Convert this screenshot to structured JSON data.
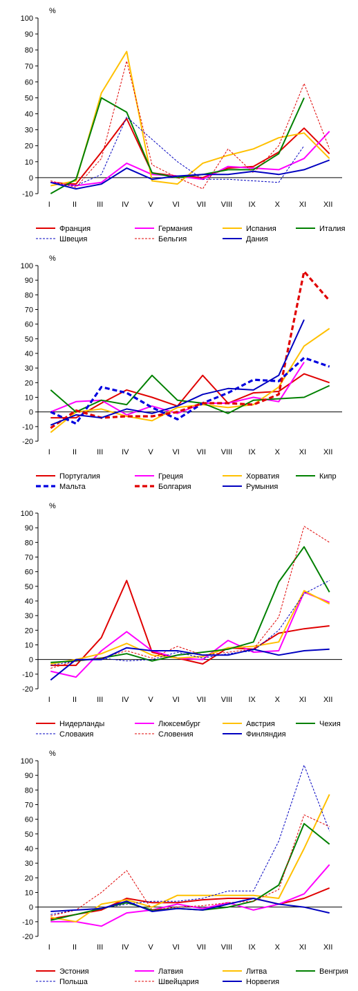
{
  "chart_data": [
    {
      "type": "line",
      "unit_label": "%",
      "categories": [
        "I",
        "II",
        "III",
        "IV",
        "V",
        "VI",
        "VII",
        "VIII",
        "IX",
        "X",
        "XI",
        "XII"
      ],
      "ylim": [
        -10,
        100
      ],
      "yticks": [
        "-10",
        "0",
        "10",
        "20",
        "30",
        "40",
        "50",
        "60",
        "70",
        "80",
        "90",
        "100"
      ],
      "legend_position": "bottom",
      "series": [
        {
          "name": "Франция",
          "color": "#e00000",
          "style": "solid",
          "width": "normal",
          "values": [
            -3,
            -4,
            16,
            37,
            3,
            1,
            0,
            6,
            7,
            16,
            31,
            15
          ]
        },
        {
          "name": "Германия",
          "color": "#ff00ff",
          "style": "solid",
          "width": "normal",
          "values": [
            -3,
            -5,
            -3,
            9,
            2,
            1,
            -1,
            7,
            6,
            5,
            12,
            29
          ]
        },
        {
          "name": "Испания",
          "color": "#ffc000",
          "style": "solid",
          "width": "normal",
          "values": [
            -5,
            -2,
            53,
            79,
            -2,
            -4,
            9,
            14,
            18,
            25,
            28,
            12
          ]
        },
        {
          "name": "Италия",
          "color": "#008000",
          "style": "solid",
          "width": "normal",
          "values": [
            -10,
            -1,
            50,
            41,
            3,
            0,
            2,
            5,
            5,
            15,
            50,
            null
          ]
        },
        {
          "name": "Швеция",
          "color": "#0000c0",
          "style": "dash",
          "width": "thin",
          "values": [
            -3,
            -5,
            2,
            38,
            24,
            10,
            -1,
            -1,
            -2,
            -3,
            20,
            null
          ]
        },
        {
          "name": "Бельгия",
          "color": "#e00000",
          "style": "dash",
          "width": "thin",
          "values": [
            -2,
            -6,
            12,
            73,
            8,
            0,
            -7,
            18,
            3,
            20,
            59,
            18
          ]
        },
        {
          "name": "Дания",
          "color": "#0000c0",
          "style": "solid",
          "width": "normal",
          "values": [
            -3,
            -7,
            -4,
            6,
            -1,
            1,
            2,
            2,
            4,
            2,
            5,
            11
          ]
        }
      ]
    },
    {
      "type": "line",
      "unit_label": "%",
      "categories": [
        "I",
        "II",
        "III",
        "IV",
        "V",
        "VI",
        "VII",
        "VIII",
        "IX",
        "X",
        "XI",
        "XII"
      ],
      "ylim": [
        -20,
        100
      ],
      "yticks": [
        "-20",
        "-10",
        "0",
        "10",
        "20",
        "30",
        "40",
        "50",
        "60",
        "70",
        "80",
        "90",
        "100"
      ],
      "legend_position": "bottom",
      "series": [
        {
          "name": "Португалия",
          "color": "#e00000",
          "style": "solid",
          "width": "normal",
          "values": [
            -4,
            -4,
            6,
            15,
            10,
            4,
            25,
            6,
            13,
            14,
            26,
            20
          ]
        },
        {
          "name": "Греция",
          "color": "#ff00ff",
          "style": "solid",
          "width": "normal",
          "values": [
            0,
            7,
            8,
            -2,
            4,
            -1,
            6,
            6,
            10,
            7,
            34,
            null
          ]
        },
        {
          "name": "Хорватия",
          "color": "#ffc000",
          "style": "solid",
          "width": "normal",
          "values": [
            -14,
            0,
            2,
            -3,
            -6,
            3,
            5,
            3,
            5,
            17,
            45,
            57
          ]
        },
        {
          "name": "Кипр",
          "color": "#008000",
          "style": "solid",
          "width": "normal",
          "values": [
            15,
            0,
            8,
            5,
            25,
            8,
            6,
            -1,
            8,
            9,
            10,
            18
          ]
        },
        {
          "name": "Мальта",
          "color": "#0000e0",
          "style": "dash",
          "width": "thick",
          "values": [
            0,
            -8,
            17,
            13,
            3,
            -5,
            6,
            13,
            22,
            21,
            37,
            31
          ]
        },
        {
          "name": "Болгария",
          "color": "#e00000",
          "style": "dash",
          "width": "thick",
          "values": [
            -11,
            1,
            -4,
            -3,
            -3,
            0,
            6,
            6,
            5,
            12,
            96,
            76
          ]
        },
        {
          "name": "Румыния",
          "color": "#0000c0",
          "style": "solid",
          "width": "normal",
          "values": [
            -9,
            -2,
            -4,
            2,
            -1,
            4,
            12,
            16,
            15,
            25,
            63,
            null
          ]
        }
      ]
    },
    {
      "type": "line",
      "unit_label": "%",
      "categories": [
        "I",
        "II",
        "III",
        "IV",
        "V",
        "VI",
        "VII",
        "VIII",
        "IX",
        "X",
        "XI",
        "XII"
      ],
      "ylim": [
        -20,
        100
      ],
      "yticks": [
        "-20",
        "-10",
        "0",
        "10",
        "20",
        "30",
        "40",
        "50",
        "60",
        "70",
        "80",
        "90",
        "100"
      ],
      "legend_position": "bottom",
      "series": [
        {
          "name": "Нидерланды",
          "color": "#e00000",
          "style": "solid",
          "width": "normal",
          "values": [
            -4,
            -4,
            15,
            54,
            5,
            1,
            -3,
            8,
            7,
            18,
            21,
            23
          ]
        },
        {
          "name": "Люксембург",
          "color": "#ff00ff",
          "style": "solid",
          "width": "normal",
          "values": [
            -8,
            -12,
            6,
            19,
            6,
            1,
            0,
            13,
            5,
            6,
            46,
            39
          ]
        },
        {
          "name": "Австрия",
          "color": "#ffc000",
          "style": "solid",
          "width": "normal",
          "values": [
            -3,
            0,
            4,
            11,
            3,
            1,
            2,
            8,
            9,
            12,
            47,
            38
          ]
        },
        {
          "name": "Чехия",
          "color": "#008000",
          "style": "solid",
          "width": "normal",
          "values": [
            -2,
            -1,
            1,
            4,
            -1,
            3,
            5,
            7,
            12,
            53,
            77,
            46
          ]
        },
        {
          "name": "Словакия",
          "color": "#0000c0",
          "style": "dash",
          "width": "thin",
          "values": [
            -4,
            -1,
            1,
            -1,
            0,
            5,
            1,
            4,
            6,
            20,
            45,
            54
          ]
        },
        {
          "name": "Словения",
          "color": "#e00000",
          "style": "dash",
          "width": "thin",
          "values": [
            -6,
            -1,
            1,
            6,
            1,
            9,
            3,
            5,
            7,
            29,
            91,
            80
          ]
        },
        {
          "name": "Финляндия",
          "color": "#0000c0",
          "style": "solid",
          "width": "normal",
          "values": [
            -14,
            0,
            0,
            8,
            6,
            6,
            3,
            3,
            7,
            3,
            6,
            7
          ]
        }
      ]
    },
    {
      "type": "line",
      "unit_label": "%",
      "categories": [
        "I",
        "II",
        "III",
        "IV",
        "V",
        "VI",
        "VII",
        "VIII",
        "IX",
        "X",
        "XI",
        "XII"
      ],
      "ylim": [
        -20,
        100
      ],
      "yticks": [
        "-20",
        "-10",
        "0",
        "10",
        "20",
        "30",
        "40",
        "50",
        "60",
        "70",
        "80",
        "90",
        "100"
      ],
      "legend_position": "bottom",
      "series": [
        {
          "name": "Эстония",
          "color": "#e00000",
          "style": "solid",
          "width": "normal",
          "values": [
            -8,
            -5,
            -2,
            6,
            3,
            3,
            5,
            6,
            6,
            2,
            6,
            13
          ]
        },
        {
          "name": "Латвия",
          "color": "#ff00ff",
          "style": "solid",
          "width": "normal",
          "values": [
            -10,
            -10,
            -13,
            -4,
            -2,
            2,
            -1,
            3,
            -2,
            2,
            9,
            29
          ]
        },
        {
          "name": "Литва",
          "color": "#ffc000",
          "style": "solid",
          "width": "normal",
          "values": [
            -7,
            -10,
            2,
            5,
            0,
            8,
            8,
            8,
            8,
            6,
            40,
            77
          ]
        },
        {
          "name": "Венгрия",
          "color": "#008000",
          "style": "solid",
          "width": "normal",
          "values": [
            -9,
            -5,
            -1,
            3,
            -2,
            -1,
            -2,
            0,
            4,
            15,
            57,
            43
          ]
        },
        {
          "name": "Польша",
          "color": "#0000c0",
          "style": "dash",
          "width": "thin",
          "values": [
            -5,
            -2,
            -1,
            2,
            4,
            4,
            6,
            11,
            11,
            45,
            97,
            52
          ]
        },
        {
          "name": "Швейцария",
          "color": "#e00000",
          "style": "dash",
          "width": "thin",
          "values": [
            -6,
            -2,
            10,
            25,
            -2,
            0,
            1,
            3,
            4,
            12,
            63,
            55
          ]
        },
        {
          "name": "Норвегия",
          "color": "#0000c0",
          "style": "solid",
          "width": "normal",
          "values": [
            -3,
            -2,
            -1,
            4,
            -3,
            -1,
            -2,
            2,
            6,
            2,
            0,
            -4
          ]
        }
      ]
    }
  ]
}
